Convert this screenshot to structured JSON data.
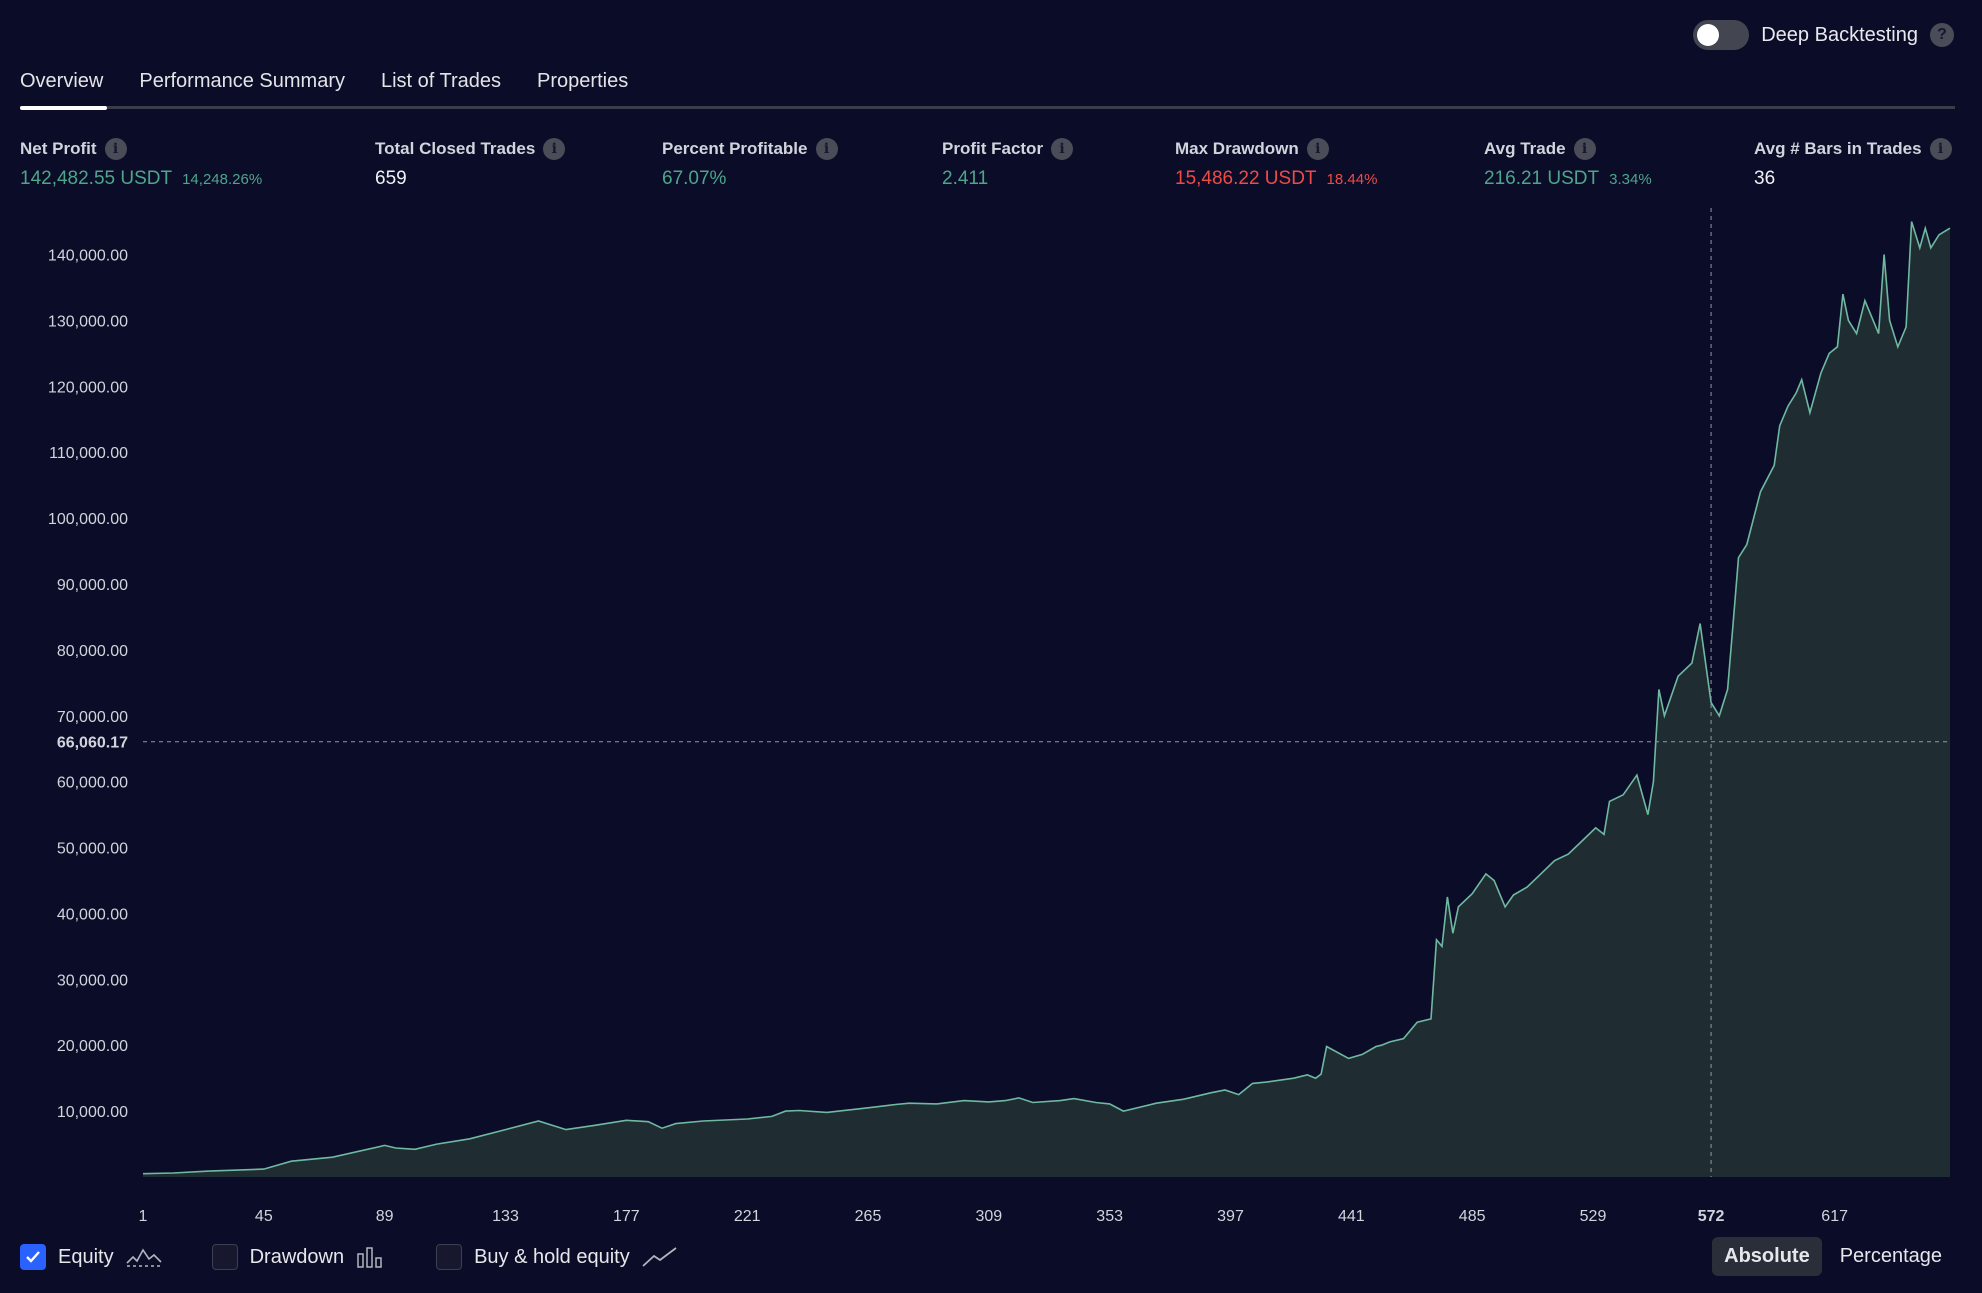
{
  "header": {
    "toggle_label": "Deep Backtesting",
    "toggle_on": false
  },
  "tabs": [
    {
      "label": "Overview",
      "active": true
    },
    {
      "label": "Performance Summary"
    },
    {
      "label": "List of Trades"
    },
    {
      "label": "Properties"
    }
  ],
  "metrics": [
    {
      "label": "Net Profit",
      "value": "142,482.55 USDT",
      "sub": "14,248.26%",
      "tone": "pos"
    },
    {
      "label": "Total Closed Trades",
      "value": "659",
      "sub": "",
      "tone": "neu"
    },
    {
      "label": "Percent Profitable",
      "value": "67.07%",
      "sub": "",
      "tone": "pos"
    },
    {
      "label": "Profit Factor",
      "value": "2.411",
      "sub": "",
      "tone": "pos"
    },
    {
      "label": "Max Drawdown",
      "value": "15,486.22 USDT",
      "sub": "18.44%",
      "tone": "neg"
    },
    {
      "label": "Avg Trade",
      "value": "216.21 USDT",
      "sub": "3.34%",
      "tone": "pos"
    },
    {
      "label": "Avg # Bars in Trades",
      "value": "36",
      "sub": "",
      "tone": "neu"
    }
  ],
  "legend": {
    "equity": {
      "label": "Equity",
      "checked": true
    },
    "drawdown": {
      "label": "Drawdown",
      "checked": false
    },
    "buy_hold": {
      "label": "Buy & hold equity",
      "checked": false
    }
  },
  "modes": {
    "absolute": "Absolute",
    "percentage": "Percentage",
    "active": "absolute"
  },
  "colors": {
    "background": "#0b0c27",
    "equity_line": "#6fb9a1",
    "equity_fill": "#1f2d33",
    "positive": "#4ea58c",
    "negative": "#f04a47",
    "checkbox_active": "#2962ff"
  },
  "chart_data": {
    "type": "area",
    "title": "",
    "xlabel": "",
    "ylabel": "",
    "xlim": [
      1,
      659
    ],
    "ylim": [
      0,
      146000
    ],
    "y_ticks": [
      "10,000.00",
      "20,000.00",
      "30,000.00",
      "40,000.00",
      "50,000.00",
      "60,000.00",
      "70,000.00",
      "80,000.00",
      "90,000.00",
      "100,000.00",
      "110,000.00",
      "120,000.00",
      "130,000.00",
      "140,000.00"
    ],
    "y_tick_values": [
      10000,
      20000,
      30000,
      40000,
      50000,
      60000,
      70000,
      80000,
      90000,
      100000,
      110000,
      120000,
      130000,
      140000
    ],
    "x_ticks": [
      "1",
      "45",
      "89",
      "133",
      "177",
      "221",
      "265",
      "309",
      "353",
      "397",
      "441",
      "485",
      "529",
      "572",
      "617"
    ],
    "x_tick_values": [
      1,
      45,
      89,
      133,
      177,
      221,
      265,
      309,
      353,
      397,
      441,
      485,
      529,
      572,
      617
    ],
    "crosshair": {
      "x": 572,
      "y": 66060.17,
      "y_label": "66,060.17",
      "x_label": "572"
    },
    "grid": false,
    "series": [
      {
        "name": "Equity",
        "x": [
          1,
          12,
          25,
          45,
          55,
          70,
          89,
          93,
          100,
          108,
          120,
          133,
          145,
          155,
          165,
          177,
          185,
          190,
          195,
          205,
          221,
          230,
          235,
          240,
          250,
          265,
          275,
          280,
          290,
          300,
          309,
          315,
          320,
          325,
          335,
          340,
          348,
          353,
          358,
          370,
          380,
          390,
          395,
          400,
          405,
          410,
          420,
          425,
          428,
          430,
          432,
          440,
          445,
          450,
          452,
          455,
          460,
          465,
          470,
          472,
          474,
          476,
          478,
          480,
          485,
          490,
          493,
          497,
          500,
          505,
          510,
          515,
          520,
          525,
          530,
          533,
          535,
          540,
          545,
          549,
          551,
          553,
          555,
          560,
          565,
          568,
          570,
          572,
          575,
          578,
          580,
          582,
          585,
          590,
          595,
          597,
          600,
          603,
          605,
          608,
          612,
          615,
          618,
          620,
          622,
          625,
          628,
          630,
          633,
          635,
          637,
          640,
          643,
          645,
          648,
          650,
          652,
          655,
          659
        ],
        "y": [
          500,
          600,
          900,
          1200,
          2400,
          3000,
          4800,
          4400,
          4200,
          5000,
          5800,
          7200,
          8500,
          7200,
          7800,
          8600,
          8400,
          7400,
          8100,
          8500,
          8800,
          9200,
          10000,
          10100,
          9800,
          10500,
          11000,
          11200,
          11100,
          11600,
          11400,
          11600,
          12000,
          11300,
          11600,
          11900,
          11300,
          11100,
          10000,
          11200,
          11800,
          12800,
          13200,
          12500,
          14200,
          14400,
          15000,
          15500,
          15000,
          15600,
          19800,
          18000,
          18600,
          19800,
          20000,
          20500,
          21000,
          23500,
          24000,
          36000,
          35000,
          42500,
          37000,
          41000,
          43000,
          46000,
          45000,
          41000,
          42800,
          44000,
          46000,
          48000,
          49000,
          51000,
          53000,
          52000,
          57000,
          58000,
          61000,
          55000,
          60000,
          74000,
          70000,
          76000,
          78000,
          84000,
          78000,
          72000,
          70000,
          74000,
          84000,
          94000,
          96000,
          104000,
          108000,
          114000,
          117000,
          119000,
          121000,
          116000,
          122000,
          125000,
          126000,
          134000,
          130000,
          128000,
          133000,
          131000,
          128000,
          140000,
          130000,
          126000,
          129000,
          145000,
          141000,
          144000,
          141000,
          143000,
          144000
        ]
      }
    ]
  }
}
